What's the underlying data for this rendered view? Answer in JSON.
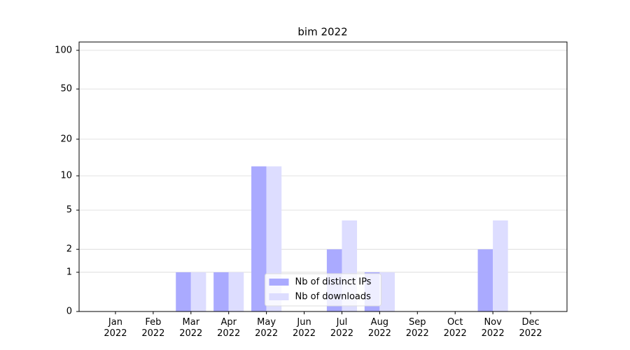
{
  "chart_data": {
    "type": "bar",
    "title": "bim 2022",
    "categories": [
      "Jan\n2022",
      "Feb\n2022",
      "Mar\n2022",
      "Apr\n2022",
      "May\n2022",
      "Jun\n2022",
      "Jul\n2022",
      "Aug\n2022",
      "Sep\n2022",
      "Oct\n2022",
      "Nov\n2022",
      "Dec\n2022"
    ],
    "series": [
      {
        "name": "Nb of distinct IPs",
        "color": "#aaaaff",
        "values": [
          0,
          0,
          1,
          1,
          12,
          0,
          2,
          1,
          0,
          0,
          2,
          0
        ]
      },
      {
        "name": "Nb of downloads",
        "color": "#ddddff",
        "values": [
          0,
          0,
          1,
          1,
          12,
          0,
          4,
          1,
          0,
          0,
          4,
          0
        ]
      }
    ],
    "yscale": "log1p",
    "ylim": [
      0,
      116
    ],
    "yticks": [
      0,
      1,
      2,
      5,
      10,
      20,
      50,
      100
    ],
    "grid": true,
    "legend": "lower center"
  }
}
